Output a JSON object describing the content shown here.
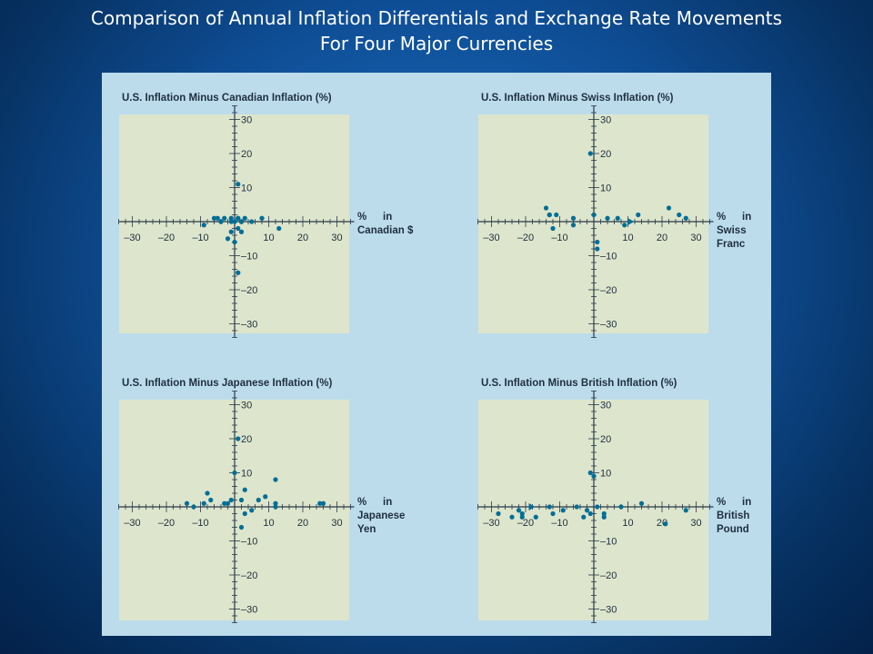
{
  "slide": {
    "title_line1": "Comparison of Annual Inflation Differentials and Exchange Rate Movements",
    "title_line2": "For Four Major Currencies"
  },
  "colors": {
    "background": "#0f4f98",
    "panel": "#bcdcec",
    "plot_area": "#dde5cc",
    "axis": "#2a3a4a",
    "points": "#006e96"
  },
  "chart_data": [
    {
      "type": "scatter",
      "title": "U.S. Inflation Minus Canadian Inflation (%)",
      "xlabel": [
        "%",
        "in",
        "Canadian $"
      ],
      "x_ticks": [
        -30,
        -20,
        -10,
        10,
        20,
        30
      ],
      "y_ticks": [
        30,
        20,
        10,
        -10,
        -20,
        -30
      ],
      "xlim": [
        -33,
        33
      ],
      "ylim": [
        -33,
        33
      ],
      "grid": false,
      "x": [
        -9,
        -6,
        -5,
        -4,
        -3,
        -2,
        -1,
        0,
        1,
        1,
        1,
        2,
        2,
        3,
        5,
        8,
        13,
        0,
        1,
        2,
        -4,
        -1,
        1,
        2,
        -1
      ],
      "y": [
        -1,
        1,
        1,
        0,
        1,
        -5,
        -3,
        0,
        1,
        -2,
        11,
        0,
        -3,
        1,
        0,
        1,
        -2,
        -6,
        -15,
        0,
        0,
        1,
        1,
        0,
        0
      ]
    },
    {
      "type": "scatter",
      "title": "U.S. Inflation Minus Swiss Inflation (%)",
      "xlabel": [
        "%",
        "in",
        "Swiss",
        "Franc"
      ],
      "x_ticks": [
        -30,
        -20,
        -10,
        10,
        20,
        30
      ],
      "y_ticks": [
        30,
        20,
        10,
        -10,
        -20,
        -30
      ],
      "xlim": [
        -33,
        33
      ],
      "ylim": [
        -33,
        33
      ],
      "grid": false,
      "x": [
        -14,
        -13,
        -13,
        -12,
        -11,
        -6,
        -6,
        -1,
        0,
        1,
        1,
        4,
        7,
        9,
        13,
        22,
        25,
        27
      ],
      "y": [
        4,
        2,
        2,
        -2,
        2,
        1,
        -1,
        20,
        2,
        -6,
        -8,
        1,
        1,
        -1,
        2,
        4,
        2,
        1
      ],
      "arrow_point": [
        11,
        0
      ]
    },
    {
      "type": "scatter",
      "title": "U.S. Inflation Minus Japanese Inflation (%)",
      "xlabel": [
        "%",
        "in",
        "Japanese",
        "Yen"
      ],
      "x_ticks": [
        -30,
        -20,
        -10,
        10,
        20,
        30
      ],
      "y_ticks": [
        30,
        20,
        10,
        -10,
        -20,
        -30
      ],
      "xlim": [
        -33,
        33
      ],
      "ylim": [
        -33,
        33
      ],
      "grid": false,
      "x": [
        -14,
        -12,
        -9,
        -8,
        -7,
        -3,
        -2,
        -1,
        0,
        1,
        2,
        2,
        3,
        3,
        5,
        7,
        9,
        12,
        12,
        12,
        25,
        26
      ],
      "y": [
        1,
        0,
        1,
        4,
        2,
        1,
        1,
        2,
        10,
        20,
        2,
        -6,
        -2,
        5,
        -1,
        2,
        3,
        8,
        0,
        1,
        1,
        1
      ]
    },
    {
      "type": "scatter",
      "title": "U.S. Inflation Minus British Inflation (%)",
      "xlabel": [
        "%",
        "in",
        "British",
        "Pound"
      ],
      "x_ticks": [
        -30,
        -20,
        -10,
        10,
        20,
        30
      ],
      "y_ticks": [
        30,
        20,
        10,
        -10,
        -20,
        -30
      ],
      "xlim": [
        -33,
        33
      ],
      "ylim": [
        -33,
        33
      ],
      "grid": false,
      "x": [
        -28,
        -24,
        -22,
        -21,
        -21,
        -17,
        -13,
        -12,
        -9,
        -5,
        -3,
        -2,
        -1,
        -1,
        0,
        1,
        3,
        3,
        8,
        14,
        21,
        27
      ],
      "y": [
        -2,
        -3,
        -1,
        -2,
        -3,
        -3,
        0,
        -2,
        -1,
        0,
        -3,
        -1,
        10,
        -2,
        9,
        0,
        -3,
        -2,
        0,
        1,
        -5,
        -1
      ],
      "arrow_point": [
        -18,
        0
      ]
    }
  ]
}
